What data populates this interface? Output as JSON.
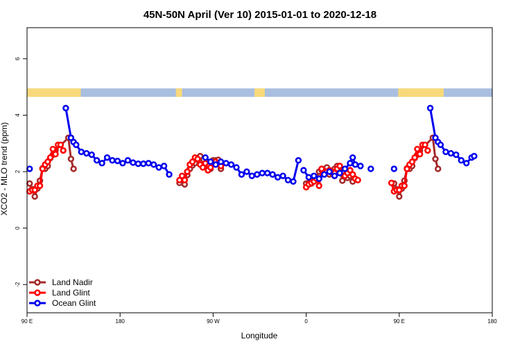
{
  "chart_data": {
    "type": "line",
    "title": "45N-50N April (Ver 10)   2015-01-01 to 2020-12-18",
    "xlabel": "Longitude",
    "ylabel": "XCO2 - MLO trend (ppm)",
    "xlim": [
      90,
      540
    ],
    "ylim": [
      -3,
      7.1
    ],
    "x_ticks": [
      {
        "value": 90,
        "label": "90 E"
      },
      {
        "value": 180,
        "label": "180"
      },
      {
        "value": 270,
        "label": "90 W"
      },
      {
        "value": 360,
        "label": "0"
      },
      {
        "value": 450,
        "label": "90 E"
      },
      {
        "value": 540,
        "label": "180"
      }
    ],
    "y_ticks": [
      {
        "value": -2,
        "label": "-2"
      },
      {
        "value": 0,
        "label": "0"
      },
      {
        "value": 2,
        "label": "2"
      },
      {
        "value": 4,
        "label": "4"
      },
      {
        "value": 6,
        "label": "6"
      }
    ],
    "grid": false,
    "legend_position": "bottom-left",
    "land_band": {
      "y_range": [
        4.65,
        4.95
      ],
      "land_color": "#f8d97a",
      "ocean_color": "#a9bfe0",
      "land_ranges": [
        [
          90,
          142
        ],
        [
          234,
          240
        ],
        [
          310,
          320
        ],
        [
          449,
          493
        ]
      ]
    },
    "series": [
      {
        "name": "Land Nadir",
        "color": "#a52a2a",
        "segments": [
          [
            [
              92.5,
              1.58
            ],
            [
              95,
              1.38
            ],
            [
              97.5,
              1.12
            ],
            [
              100,
              1.4
            ],
            [
              102.5,
              1.68
            ],
            [
              105,
              2.12
            ],
            [
              107.5,
              2.1
            ],
            [
              110,
              2.2
            ],
            [
              112.5,
              2.48
            ],
            [
              115,
              2.6
            ],
            [
              117.5,
              2.75
            ],
            [
              130,
              3.2
            ],
            [
              132.5,
              2.45
            ],
            [
              135,
              2.1
            ]
          ],
          [
            [
              237.5,
              1.6
            ],
            [
              240,
              1.8
            ],
            [
              242.5,
              1.55
            ],
            [
              245,
              1.88
            ],
            [
              247.5,
              2.1
            ],
            [
              250,
              2.22
            ],
            [
              252.5,
              2.3
            ],
            [
              255,
              2.45
            ],
            [
              257.5,
              2.55
            ],
            [
              260,
              2.2
            ],
            [
              262.5,
              2.3
            ],
            [
              265,
              2.05
            ],
            [
              267.5,
              2.1
            ],
            [
              270,
              2.4
            ],
            [
              272.5,
              2.4
            ],
            [
              275,
              2.42
            ],
            [
              277.5,
              2.1
            ]
          ],
          [
            [
              360,
              1.58
            ],
            [
              362.5,
              1.6
            ],
            [
              365,
              1.58
            ],
            [
              367.5,
              1.75
            ],
            [
              370,
              1.78
            ],
            [
              372.5,
              2.0
            ],
            [
              375,
              2.05
            ],
            [
              377.5,
              2.0
            ],
            [
              380,
              2.15
            ],
            [
              382.5,
              1.9
            ],
            [
              385,
              1.95
            ],
            [
              387.5,
              2.1
            ],
            [
              390,
              2.2
            ],
            [
              392.5,
              2.1
            ],
            [
              395,
              1.68
            ],
            [
              397.5,
              2.05
            ],
            [
              400,
              1.78
            ],
            [
              402.5,
              1.85
            ],
            [
              405,
              1.65
            ]
          ],
          [
            [
              445,
              1.58
            ],
            [
              447.5,
              1.38
            ],
            [
              450,
              1.12
            ],
            [
              452.5,
              1.4
            ],
            [
              455,
              1.68
            ],
            [
              457.5,
              2.12
            ],
            [
              460,
              2.1
            ],
            [
              462.5,
              2.2
            ],
            [
              465,
              2.48
            ],
            [
              467.5,
              2.6
            ],
            [
              470,
              2.75
            ],
            [
              482.5,
              3.2
            ],
            [
              485,
              2.45
            ],
            [
              487.5,
              2.1
            ]
          ]
        ]
      },
      {
        "name": "Land Glint",
        "color": "#ff0000",
        "segments": [
          [
            [
              92.5,
              1.3
            ],
            [
              95,
              1.35
            ],
            [
              97.5,
              1.35
            ],
            [
              100,
              1.5
            ],
            [
              102.5,
              1.5
            ],
            [
              105,
              2.1
            ],
            [
              107.5,
              2.25
            ],
            [
              110,
              2.35
            ],
            [
              112.5,
              2.5
            ],
            [
              115,
              2.8
            ],
            [
              117.5,
              2.62
            ],
            [
              120,
              2.95
            ],
            [
              122.5,
              2.95
            ],
            [
              125,
              2.75
            ]
          ],
          [
            [
              237.5,
              1.7
            ],
            [
              240,
              1.85
            ],
            [
              242.5,
              1.7
            ],
            [
              245,
              2.0
            ],
            [
              247.5,
              2.25
            ],
            [
              250,
              2.35
            ],
            [
              252.5,
              2.5
            ],
            [
              255,
              2.45
            ],
            [
              257.5,
              2.25
            ],
            [
              260,
              2.15
            ],
            [
              262.5,
              2.3
            ],
            [
              265,
              2.05
            ],
            [
              267.5,
              2.15
            ],
            [
              270,
              2.3
            ],
            [
              272.5,
              2.35
            ],
            [
              275,
              2.3
            ],
            [
              277.5,
              2.2
            ]
          ],
          [
            [
              360,
              1.45
            ],
            [
              362.5,
              1.55
            ],
            [
              365,
              1.6
            ],
            [
              367.5,
              1.65
            ],
            [
              370,
              1.75
            ],
            [
              372.5,
              1.5
            ],
            [
              375,
              2.1
            ],
            [
              377.5,
              1.95
            ],
            [
              380,
              2.0
            ],
            [
              382.5,
              2.05
            ],
            [
              385,
              2.0
            ],
            [
              387.5,
              1.95
            ],
            [
              390,
              2.1
            ],
            [
              392.5,
              2.2
            ],
            [
              395,
              2.0
            ],
            [
              397.5,
              1.85
            ],
            [
              400,
              1.95
            ],
            [
              402.5,
              2.05
            ],
            [
              405,
              1.9
            ],
            [
              407.5,
              1.75
            ],
            [
              410,
              1.7
            ]
          ],
          [
            [
              442.5,
              1.6
            ],
            [
              445,
              1.3
            ],
            [
              447.5,
              1.35
            ],
            [
              450,
              1.35
            ],
            [
              452.5,
              1.5
            ],
            [
              455,
              1.5
            ],
            [
              457.5,
              2.1
            ],
            [
              460,
              2.25
            ],
            [
              462.5,
              2.35
            ],
            [
              465,
              2.5
            ],
            [
              467.5,
              2.8
            ],
            [
              470,
              2.62
            ],
            [
              472.5,
              2.95
            ],
            [
              475,
              2.95
            ],
            [
              477.5,
              2.75
            ]
          ]
        ]
      },
      {
        "name": "Ocean Glint",
        "color": "#0000ee",
        "segments": [
          [
            [
              92.5,
              2.1
            ]
          ],
          [
            [
              127.5,
              4.25
            ],
            [
              132.5,
              3.2
            ],
            [
              135,
              3.05
            ],
            [
              137.5,
              2.95
            ],
            [
              142.5,
              2.7
            ],
            [
              147.5,
              2.65
            ],
            [
              152.5,
              2.6
            ],
            [
              157.5,
              2.4
            ],
            [
              162.5,
              2.3
            ],
            [
              167.5,
              2.5
            ],
            [
              172.5,
              2.4
            ],
            [
              177.5,
              2.38
            ],
            [
              182.5,
              2.3
            ],
            [
              187.5,
              2.4
            ],
            [
              192.5,
              2.32
            ],
            [
              197.5,
              2.28
            ],
            [
              202.5,
              2.28
            ],
            [
              207.5,
              2.3
            ],
            [
              212.5,
              2.25
            ],
            [
              217.5,
              2.15
            ],
            [
              222.5,
              2.2
            ],
            [
              227.5,
              1.9
            ]
          ],
          [
            [
              262.5,
              2.5
            ],
            [
              267.5,
              2.35
            ],
            [
              272.5,
              2.25
            ],
            [
              277.5,
              2.35
            ],
            [
              282.5,
              2.3
            ],
            [
              287.5,
              2.25
            ],
            [
              292.5,
              2.15
            ],
            [
              297.5,
              1.9
            ],
            [
              302.5,
              2.0
            ],
            [
              307.5,
              1.85
            ],
            [
              312.5,
              1.9
            ],
            [
              317.5,
              1.95
            ],
            [
              322.5,
              1.95
            ],
            [
              327.5,
              1.9
            ],
            [
              332.5,
              1.8
            ],
            [
              337.5,
              1.85
            ],
            [
              342.5,
              1.7
            ],
            [
              347.5,
              1.65
            ],
            [
              352.5,
              2.4
            ]
          ],
          [
            [
              357.5,
              2.05
            ],
            [
              362.5,
              1.8
            ],
            [
              367.5,
              1.85
            ],
            [
              372.5,
              1.75
            ],
            [
              377.5,
              1.9
            ],
            [
              382.5,
              2.0
            ],
            [
              387.5,
              1.85
            ],
            [
              392.5,
              1.95
            ],
            [
              397.5,
              2.1
            ],
            [
              402.5,
              2.3
            ],
            [
              405,
              2.5
            ],
            [
              407.5,
              2.25
            ]
          ],
          [
            [
              412.5,
              2.2
            ]
          ],
          [
            [
              422.5,
              2.1
            ]
          ],
          [
            [
              445,
              2.1
            ]
          ],
          [
            [
              480,
              4.25
            ],
            [
              485,
              3.2
            ],
            [
              487.5,
              3.05
            ],
            [
              490,
              2.95
            ],
            [
              495,
              2.7
            ],
            [
              500,
              2.65
            ],
            [
              505,
              2.6
            ],
            [
              510,
              2.4
            ],
            [
              515,
              2.3
            ],
            [
              520,
              2.5
            ],
            [
              522.5,
              2.55
            ]
          ]
        ]
      }
    ]
  }
}
